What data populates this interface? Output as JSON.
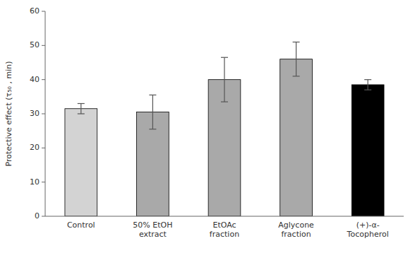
{
  "chart_data": {
    "type": "bar",
    "categories": [
      "Control",
      "50% EtOH\nextract",
      "EtOAc\nfraction",
      "Aglycone\nfraction",
      "(+)-α-\nTocopherol"
    ],
    "values": [
      31.5,
      30.5,
      40.0,
      46.0,
      38.5
    ],
    "errors": [
      1.5,
      5.0,
      6.5,
      5.0,
      1.5
    ],
    "colors": [
      "#d3d3d3",
      "#a9a9a9",
      "#a9a9a9",
      "#a9a9a9",
      "#000000"
    ],
    "ylabel": "Protective effect (τ₅₀ , min)",
    "ylim": [
      0,
      60
    ],
    "yticks": [
      0,
      10,
      20,
      30,
      40,
      50,
      60
    ],
    "grid": false
  }
}
